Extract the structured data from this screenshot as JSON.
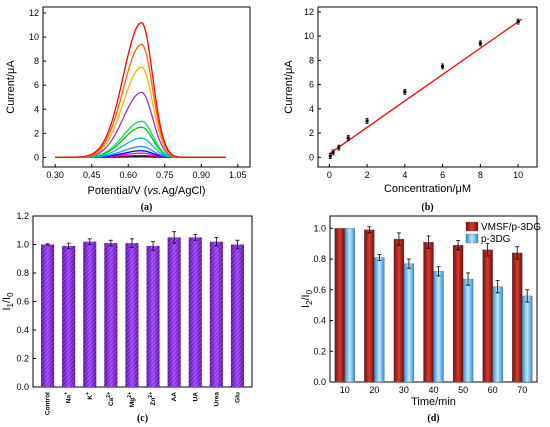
{
  "chart_data": [
    {
      "panel": "(a)",
      "type": "line",
      "xlabel_main": "Potential/V (",
      "xlabel_italic": "vs.",
      "xlabel_end": "Ag/AgCl)",
      "ylabel": "Current/μA",
      "xlim": [
        0.25,
        1.1
      ],
      "ylim": [
        -0.8,
        12.5
      ],
      "xticks": [
        "0.30",
        "0.45",
        "0.60",
        "0.75",
        "0.90",
        "1.05"
      ],
      "xtick_values": [
        0.3,
        0.45,
        0.6,
        0.75,
        0.9,
        1.05
      ],
      "yticks": [
        "0",
        "2",
        "4",
        "6",
        "8",
        "10",
        "12"
      ],
      "ytick_values": [
        0,
        2,
        4,
        6,
        8,
        10,
        12
      ],
      "curve_range": [
        0.3,
        1.0
      ],
      "peak_x": 0.655,
      "curves": [
        {
          "peak": 0.05,
          "color": "#000000"
        },
        {
          "peak": 0.15,
          "color": "#7a1f1f"
        },
        {
          "peak": 0.35,
          "color": "#ff00ff"
        },
        {
          "peak": 0.55,
          "color": "#0000ff"
        },
        {
          "peak": 0.9,
          "color": "#1e90ff"
        },
        {
          "peak": 1.6,
          "color": "#00bcd4"
        },
        {
          "peak": 2.5,
          "color": "#00c800"
        },
        {
          "peak": 3.0,
          "color": "#00e060"
        },
        {
          "peak": 5.4,
          "color": "#9b30d0"
        },
        {
          "peak": 7.5,
          "color": "#ffb300"
        },
        {
          "peak": 9.4,
          "color": "#ff6600"
        },
        {
          "peak": 11.2,
          "color": "#ff0000"
        }
      ]
    },
    {
      "panel": "(b)",
      "type": "scatter",
      "xlabel": "Concentration/μM",
      "ylabel": "Current/μA",
      "xlim": [
        -0.6,
        11
      ],
      "ylim": [
        -0.8,
        12.4
      ],
      "xticks": [
        "0",
        "2",
        "4",
        "6",
        "8",
        "10"
      ],
      "xtick_values": [
        0,
        2,
        4,
        6,
        8,
        10
      ],
      "yticks": [
        "0",
        "2",
        "4",
        "6",
        "8",
        "10",
        "12"
      ],
      "ytick_values": [
        0,
        2,
        4,
        6,
        8,
        10,
        12
      ],
      "points": [
        {
          "x": 0.05,
          "y": 0.1
        },
        {
          "x": 0.2,
          "y": 0.4
        },
        {
          "x": 0.5,
          "y": 0.8
        },
        {
          "x": 1,
          "y": 1.6
        },
        {
          "x": 2,
          "y": 3.0
        },
        {
          "x": 4,
          "y": 5.4
        },
        {
          "x": 6,
          "y": 7.5
        },
        {
          "x": 8,
          "y": 9.4
        },
        {
          "x": 10,
          "y": 11.2
        }
      ],
      "fit_line": {
        "x0": 0.05,
        "y0": 0.35,
        "x1": 10.2,
        "y1": 11.4,
        "color": "#ff0000"
      }
    },
    {
      "panel": "(c)",
      "type": "bar",
      "ylabel": "I",
      "ylabel_sub": "1",
      "ylabel_mid": "/I",
      "ylabel_sub2": "0",
      "ylim": [
        0,
        1.2
      ],
      "yticks": [
        "0.0",
        "0.2",
        "0.4",
        "0.6",
        "0.8",
        "1.0",
        "1.2"
      ],
      "ytick_values": [
        0,
        0.2,
        0.4,
        0.6,
        0.8,
        1.0,
        1.2
      ],
      "categories": [
        {
          "base": "Control",
          "sup": ""
        },
        {
          "base": "Na",
          "sup": "+"
        },
        {
          "base": "K",
          "sup": "+"
        },
        {
          "base": "Ca",
          "sup": "2+"
        },
        {
          "base": "Mg",
          "sup": "2+"
        },
        {
          "base": "Zn",
          "sup": "2+"
        },
        {
          "base": "AA",
          "sup": ""
        },
        {
          "base": "UA",
          "sup": ""
        },
        {
          "base": "Urea",
          "sup": ""
        },
        {
          "base": "Glu",
          "sup": ""
        }
      ],
      "values": [
        1.0,
        0.99,
        1.02,
        1.01,
        1.01,
        0.99,
        1.05,
        1.05,
        1.02,
        1.0
      ],
      "errors": [
        0.005,
        0.02,
        0.02,
        0.02,
        0.03,
        0.03,
        0.04,
        0.02,
        0.03,
        0.03
      ],
      "color": "#8a2be2"
    },
    {
      "panel": "(d)",
      "type": "bar",
      "xlabel": "Time/min",
      "ylabel": "I",
      "ylabel_sub": "2",
      "ylabel_mid": "/I",
      "ylabel_sub2": "0",
      "ylim": [
        0,
        1.08
      ],
      "yticks": [
        "0.0",
        "0.2",
        "0.4",
        "0.6",
        "0.8",
        "1.0"
      ],
      "ytick_values": [
        0,
        0.2,
        0.4,
        0.6,
        0.8,
        1.0
      ],
      "categories": [
        "10",
        "20",
        "30",
        "40",
        "50",
        "60",
        "70"
      ],
      "legend_position": "top-right",
      "series": [
        {
          "name": "VMSF/p-3DG",
          "color": "#b22222",
          "values": [
            1.0,
            0.99,
            0.93,
            0.91,
            0.89,
            0.86,
            0.84
          ],
          "errors": [
            0,
            0.02,
            0.04,
            0.04,
            0.03,
            0.04,
            0.04
          ]
        },
        {
          "name": "p-3DG",
          "color": "#5bc0f8",
          "values": [
            1.0,
            0.81,
            0.77,
            0.72,
            0.67,
            0.62,
            0.56
          ],
          "errors": [
            0,
            0.02,
            0.03,
            0.03,
            0.04,
            0.04,
            0.04
          ]
        }
      ]
    }
  ]
}
